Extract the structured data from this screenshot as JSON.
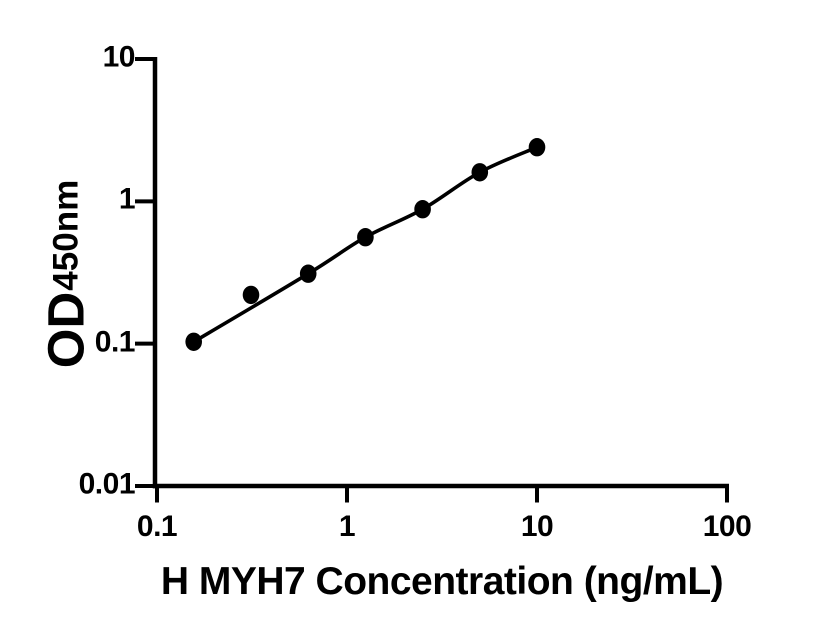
{
  "figure": {
    "background_color": "#ffffff",
    "ink_color": "#000000"
  },
  "chart_data": {
    "type": "scatter",
    "title": "",
    "xlabel": "H MYH7 Concentration (ng/mL)",
    "ylabel_main": "OD",
    "ylabel_sub": "450nm",
    "x_scale": "log",
    "y_scale": "log",
    "xlim": [
      0.1,
      100
    ],
    "ylim": [
      0.01,
      10
    ],
    "grid": false,
    "legend": "none",
    "marker": {
      "shape": "circle",
      "color": "#000000"
    },
    "fit_line": {
      "color": "#000000",
      "style": "solid",
      "through_point_indices": [
        0,
        2,
        3,
        4,
        5,
        6
      ]
    },
    "x_ticks": [
      {
        "value": 0.1,
        "label": "0.1"
      },
      {
        "value": 1,
        "label": "1"
      },
      {
        "value": 10,
        "label": "10"
      },
      {
        "value": 100,
        "label": "100"
      }
    ],
    "y_ticks": [
      {
        "value": 10,
        "label": "10"
      },
      {
        "value": 1,
        "label": "1"
      },
      {
        "value": 0.1,
        "label": "0.1"
      },
      {
        "value": 0.01,
        "label": "0.01"
      }
    ],
    "points": [
      {
        "x": 0.156,
        "y": 0.103
      },
      {
        "x": 0.3125,
        "y": 0.22
      },
      {
        "x": 0.625,
        "y": 0.31
      },
      {
        "x": 1.25,
        "y": 0.56
      },
      {
        "x": 2.5,
        "y": 0.88
      },
      {
        "x": 5,
        "y": 1.6
      },
      {
        "x": 10,
        "y": 2.4
      }
    ]
  }
}
